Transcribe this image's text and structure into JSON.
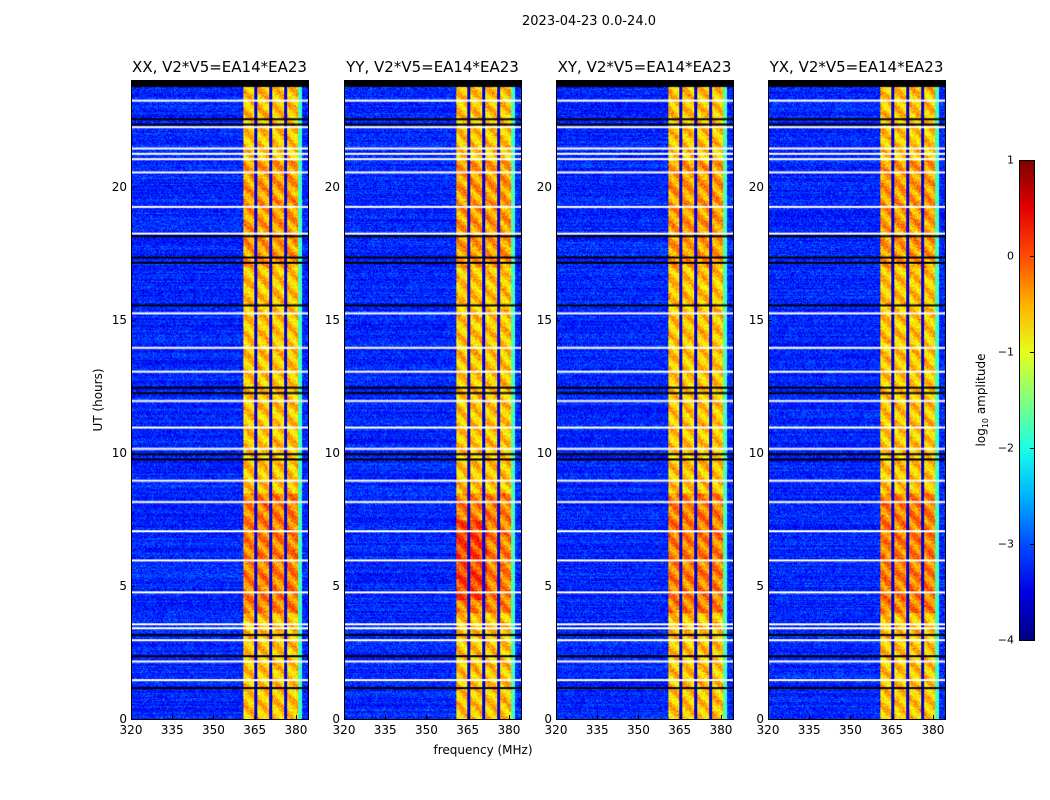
{
  "chart_data": {
    "type": "heatmap",
    "suptitle": "2023-04-23 0.0-24.0",
    "xlabel": "frequency (MHz)",
    "ylabel": "UT (hours)",
    "xlim": [
      320,
      384.4
    ],
    "ylim": [
      0,
      24
    ],
    "xticks": [
      "320",
      "335",
      "350",
      "365",
      "380"
    ],
    "xtick_values": [
      320,
      335,
      350,
      365,
      380
    ],
    "yticks": [
      "0",
      "5",
      "10",
      "15",
      "20"
    ],
    "ytick_values": [
      0,
      5,
      10,
      15,
      20
    ],
    "panels": [
      {
        "title": "XX, V2*V5=EA14*EA23"
      },
      {
        "title": "YY, V2*V5=EA14*EA23"
      },
      {
        "title": "XY, V2*V5=EA14*EA23"
      },
      {
        "title": "YX, V2*V5=EA14*EA23"
      }
    ],
    "rfi_band_mhz": [
      360.7,
      380.4
    ],
    "band_gaps_mhz": [
      365.2,
      370.6,
      376.0
    ],
    "background_log10_amplitude": -3.2,
    "band_log10_amplitude": -0.6,
    "flagged_white_hours": [
      23.3,
      22.3,
      21.5,
      21.3,
      21.1,
      20.6,
      19.3,
      18.3,
      15.3,
      14.0,
      13.1,
      12.0,
      11.0,
      10.2,
      9.0,
      8.2,
      7.1,
      6.0,
      4.8,
      3.6,
      3.45,
      3.0,
      2.2,
      1.5
    ],
    "flagged_black_hours": [
      23.9,
      23.85,
      22.6,
      22.4,
      18.2,
      17.4,
      17.2,
      15.6,
      12.5,
      12.3,
      10.0,
      9.8,
      3.2,
      2.4,
      1.2
    ],
    "colorbar": {
      "label": "log10 amplitude",
      "label_main": "log",
      "label_sub": "10",
      "label_rest": " amplitude",
      "range": [
        -4,
        1
      ],
      "ticks": [
        "1",
        "0",
        "−1",
        "−2",
        "−3",
        "−4"
      ],
      "tick_values": [
        1,
        0,
        -1,
        -2,
        -3,
        -4
      ],
      "colormap": "jet"
    }
  }
}
